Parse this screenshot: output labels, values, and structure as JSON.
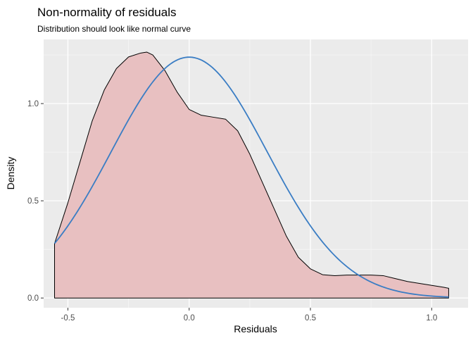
{
  "chart_data": {
    "type": "area",
    "title": "Non-normality of residuals",
    "subtitle": "Distribution should look like normal curve",
    "xlabel": "Residuals",
    "ylabel": "Density",
    "xlim": [
      -0.6,
      1.15
    ],
    "ylim": [
      -0.05,
      1.33
    ],
    "x_ticks": [
      -0.5,
      0.0,
      0.5,
      1.0
    ],
    "x_tick_labels": [
      "-0.5",
      "0.0",
      "0.5",
      "1.0"
    ],
    "y_ticks": [
      0.0,
      0.5,
      1.0
    ],
    "y_tick_labels": [
      "0.0",
      "0.5",
      "1.0"
    ],
    "grid": true,
    "legend": "none",
    "series": [
      {
        "kind": "density-area",
        "fill": "#e8c0c1",
        "stroke": "#000000",
        "x": [
          -0.555,
          -0.5,
          -0.45,
          -0.4,
          -0.35,
          -0.3,
          -0.25,
          -0.2,
          -0.175,
          -0.15,
          -0.1,
          -0.05,
          0.0,
          0.05,
          0.1,
          0.15,
          0.2,
          0.25,
          0.3,
          0.35,
          0.4,
          0.45,
          0.5,
          0.55,
          0.6,
          0.65,
          0.7,
          0.75,
          0.8,
          0.85,
          0.9,
          0.95,
          1.0,
          1.05,
          1.07
        ],
        "y": [
          0.28,
          0.49,
          0.7,
          0.91,
          1.07,
          1.18,
          1.24,
          1.26,
          1.265,
          1.25,
          1.17,
          1.06,
          0.97,
          0.94,
          0.93,
          0.92,
          0.86,
          0.74,
          0.6,
          0.46,
          0.32,
          0.21,
          0.15,
          0.12,
          0.115,
          0.118,
          0.118,
          0.118,
          0.115,
          0.1,
          0.085,
          0.075,
          0.065,
          0.055,
          0.05
        ]
      },
      {
        "kind": "normal-curve",
        "stroke": "#3a7dc4",
        "mean": 0.0,
        "sd": 0.322,
        "x_start": -0.555,
        "x_end": 1.07
      }
    ]
  }
}
